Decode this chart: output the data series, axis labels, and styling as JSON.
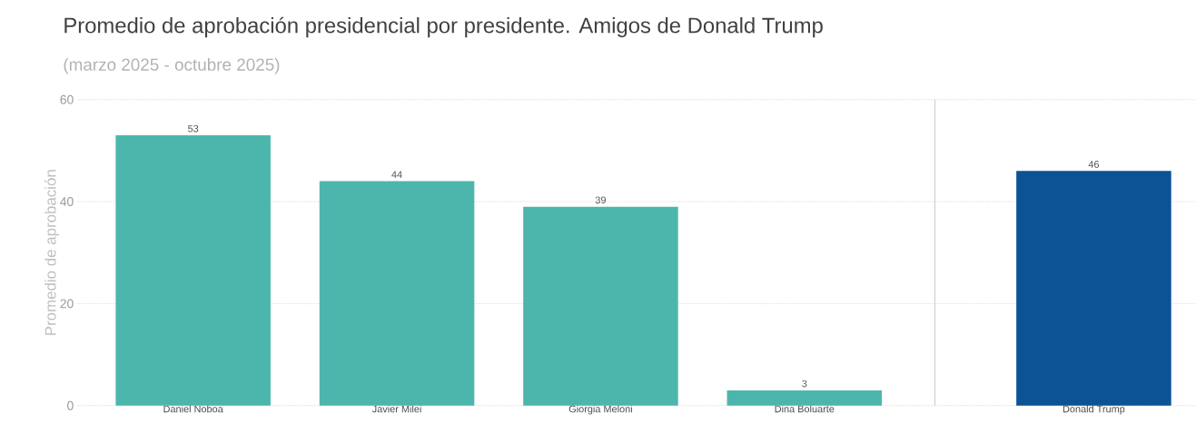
{
  "chart_data": [
    {
      "type": "bar",
      "title": "Promedio de aprobación presidencial por presidente. Amigos de Donald Trump",
      "subtitle": "(marzo 2025 - octubre 2025)",
      "ylabel": "Promedio de aprobación",
      "categories": [
        "Daniel Noboa",
        "Javier Milei",
        "Giorgia Meloni",
        "Dina Boluarte"
      ],
      "values": [
        53,
        44,
        39,
        3
      ],
      "colors": [
        "#4db6ac",
        "#4db6ac",
        "#4db6ac",
        "#4db6ac"
      ],
      "ylim": [
        0,
        60
      ],
      "yticks": [
        0,
        20,
        40,
        60
      ],
      "grid": "y",
      "data_labels": true
    },
    {
      "type": "bar",
      "categories": [
        "Donald Trump"
      ],
      "values": [
        46
      ],
      "colors": [
        "#0b5394"
      ],
      "ylim": [
        0,
        60
      ],
      "yticks": [
        0,
        20,
        40,
        60
      ],
      "grid": "y",
      "data_labels": true,
      "tick_labels": "x"
    }
  ]
}
